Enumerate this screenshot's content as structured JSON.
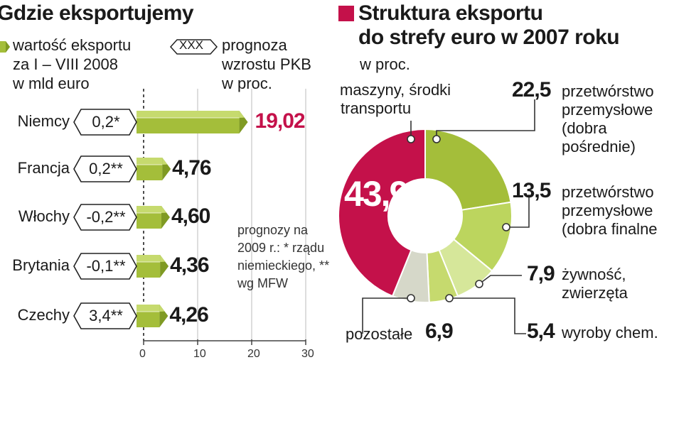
{
  "colors": {
    "bar_green": "#a4be3a",
    "bar_green_light": "#c6da6e",
    "bar_green_dark": "#7f9a23",
    "highlight": "#c4114a",
    "pie_gray": "#d6d8c9",
    "pie_light": "#d6e79a",
    "pie_mid": "#bcd55e"
  },
  "left": {
    "title": "Gdzie eksportujemy",
    "legend_value": [
      "wartość eksportu",
      "za I – VIII 2008",
      "w mld euro"
    ],
    "legend_forecast_symbol": "XXX",
    "legend_forecast": [
      "prognoza",
      "wzrostu PKB",
      "w proc."
    ],
    "footnote": "prognozy na 2009 r.: * rządu niemieckiego, ** wg MFW"
  },
  "right": {
    "title": [
      "Struktura eksportu",
      "do strefy euro w 2007 roku"
    ],
    "unit": "w proc."
  },
  "chart_data": [
    {
      "type": "bar",
      "orientation": "horizontal",
      "title": "Gdzie eksportujemy",
      "xlabel": "",
      "ylabel": "",
      "xlim": [
        0,
        30
      ],
      "xticks": [
        "0",
        "10",
        "20",
        "30"
      ],
      "categories": [
        "Niemcy",
        "Francja",
        "Włochy",
        "Brytania",
        "Czechy"
      ],
      "values": [
        19.02,
        4.76,
        4.6,
        4.36,
        4.26
      ],
      "value_labels": [
        "19,02",
        "4,76",
        "4,60",
        "4,36",
        "4,26"
      ],
      "forecasts": [
        "0,2*",
        "0,2**",
        "-0,2**",
        "-0,1**",
        "3,4**"
      ],
      "series_legend": [
        "wartość eksportu za I – VIII 2008 w mld euro",
        "prognoza wzrostu PKB w proc."
      ],
      "highlighted_category": "Niemcy"
    },
    {
      "type": "pie",
      "donut": true,
      "title": "Struktura eksportu do strefy euro w 2007 roku",
      "unit": "w proc.",
      "slices": [
        {
          "label": [
            "maszyny, środki",
            "transportu"
          ],
          "value": 43.9,
          "value_label": "43,9",
          "color": "#c4114a"
        },
        {
          "label": [
            "przetwórstwo",
            "przemysłowe",
            "(dobra",
            "pośrednie)"
          ],
          "value": 22.5,
          "value_label": "22,5",
          "color": "#a4be3a"
        },
        {
          "label": [
            "przetwórstwo",
            "przemysłowe",
            "(dobra finalne"
          ],
          "value": 13.5,
          "value_label": "13,5",
          "color": "#bcd55e"
        },
        {
          "label": [
            "żywność,",
            "zwierzęta"
          ],
          "value": 7.9,
          "value_label": "7,9",
          "color": "#d6e79a"
        },
        {
          "label": [
            "wyroby chem."
          ],
          "value": 5.4,
          "value_label": "5,4",
          "color": "#c6da6e"
        },
        {
          "label": [
            "pozostałe"
          ],
          "value": 6.9,
          "value_label": "6,9",
          "color": "#d6d8c9"
        }
      ]
    }
  ]
}
